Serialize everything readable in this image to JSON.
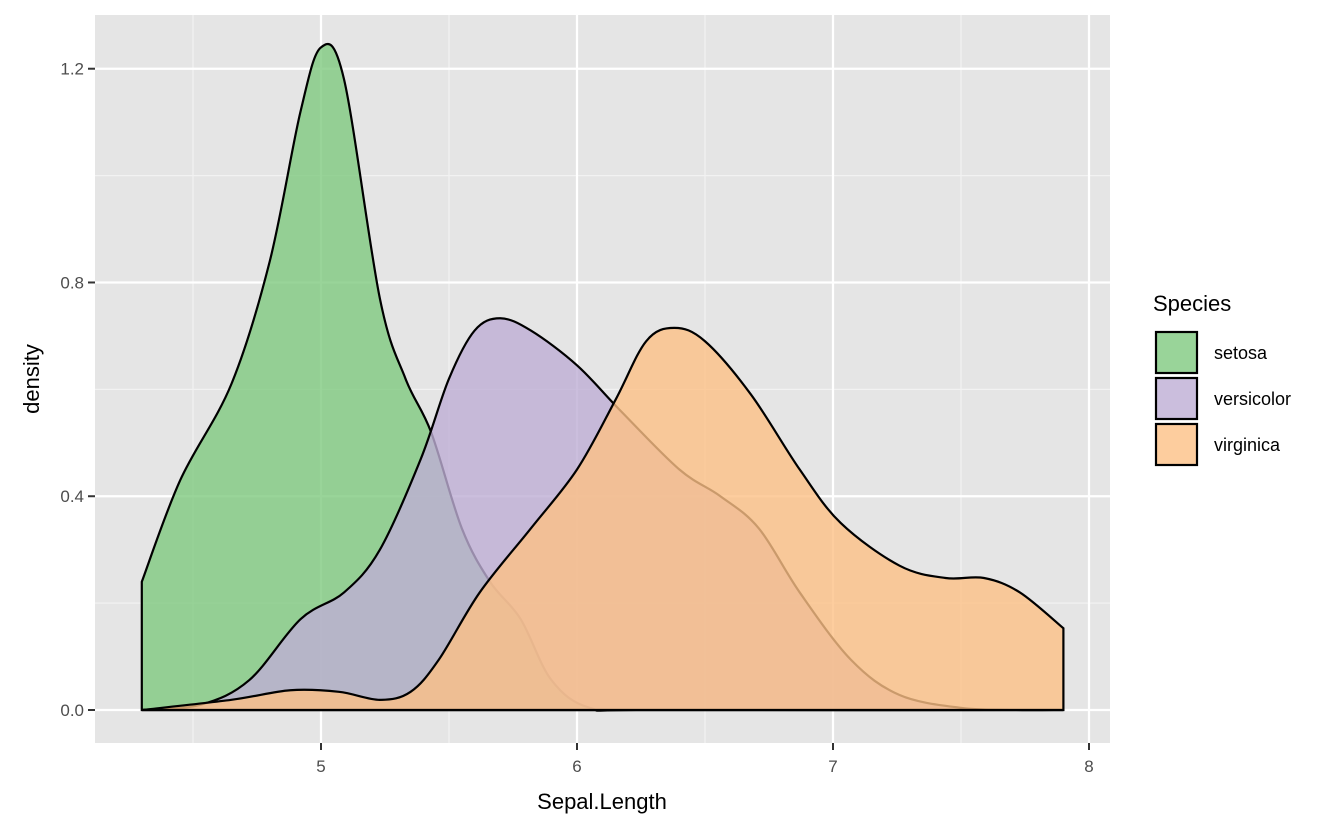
{
  "chart_data": {
    "type": "area",
    "subtype": "density",
    "title": "",
    "xlabel": "Sepal.Length",
    "ylabel": "density",
    "xlim": [
      4.1,
      8.05
    ],
    "ylim": [
      -0.06,
      1.3
    ],
    "xticks": [
      5,
      6,
      7,
      8
    ],
    "yticks": [
      0.0,
      0.4,
      0.8,
      1.2
    ],
    "ytick_labels": [
      "0.0",
      "0.4",
      "0.8",
      "1.2"
    ],
    "grid": true,
    "legend": {
      "title": "Species",
      "placement": "right"
    },
    "fill_alpha": 0.8,
    "series": [
      {
        "name": "setosa",
        "color": "#7fc97f",
        "points": [
          [
            4.3,
            0.24
          ],
          [
            4.45,
            0.43
          ],
          [
            4.65,
            0.61
          ],
          [
            4.8,
            0.84
          ],
          [
            4.92,
            1.12
          ],
          [
            5.0,
            1.24
          ],
          [
            5.09,
            1.18
          ],
          [
            5.23,
            0.77
          ],
          [
            5.33,
            0.62
          ],
          [
            5.43,
            0.52
          ],
          [
            5.55,
            0.34
          ],
          [
            5.66,
            0.24
          ],
          [
            5.78,
            0.17
          ],
          [
            5.9,
            0.056
          ],
          [
            6.05,
            0.004
          ],
          [
            6.3,
            0.0
          ],
          [
            7.9,
            0.0
          ]
        ]
      },
      {
        "name": "versicolor",
        "color": "#beaed4",
        "points": [
          [
            4.3,
            0.0
          ],
          [
            4.53,
            0.01
          ],
          [
            4.72,
            0.056
          ],
          [
            4.92,
            0.17
          ],
          [
            5.09,
            0.22
          ],
          [
            5.23,
            0.3
          ],
          [
            5.39,
            0.47
          ],
          [
            5.5,
            0.62
          ],
          [
            5.6,
            0.71
          ],
          [
            5.7,
            0.733
          ],
          [
            5.82,
            0.71
          ],
          [
            6.0,
            0.645
          ],
          [
            6.17,
            0.56
          ],
          [
            6.4,
            0.45
          ],
          [
            6.56,
            0.4
          ],
          [
            6.71,
            0.34
          ],
          [
            6.87,
            0.22
          ],
          [
            7.07,
            0.094
          ],
          [
            7.26,
            0.028
          ],
          [
            7.5,
            0.004
          ],
          [
            7.7,
            0.0
          ],
          [
            7.9,
            0.0
          ]
        ]
      },
      {
        "name": "virginica",
        "color": "#fdc086",
        "points": [
          [
            4.3,
            0.0
          ],
          [
            4.65,
            0.019
          ],
          [
            4.88,
            0.037
          ],
          [
            5.07,
            0.034
          ],
          [
            5.23,
            0.019
          ],
          [
            5.35,
            0.034
          ],
          [
            5.46,
            0.094
          ],
          [
            5.62,
            0.22
          ],
          [
            5.82,
            0.34
          ],
          [
            6.0,
            0.45
          ],
          [
            6.15,
            0.58
          ],
          [
            6.27,
            0.69
          ],
          [
            6.38,
            0.715
          ],
          [
            6.5,
            0.69
          ],
          [
            6.68,
            0.59
          ],
          [
            6.87,
            0.45
          ],
          [
            7.03,
            0.35
          ],
          [
            7.26,
            0.27
          ],
          [
            7.44,
            0.247
          ],
          [
            7.59,
            0.247
          ],
          [
            7.73,
            0.22
          ],
          [
            7.9,
            0.153
          ]
        ]
      }
    ]
  }
}
